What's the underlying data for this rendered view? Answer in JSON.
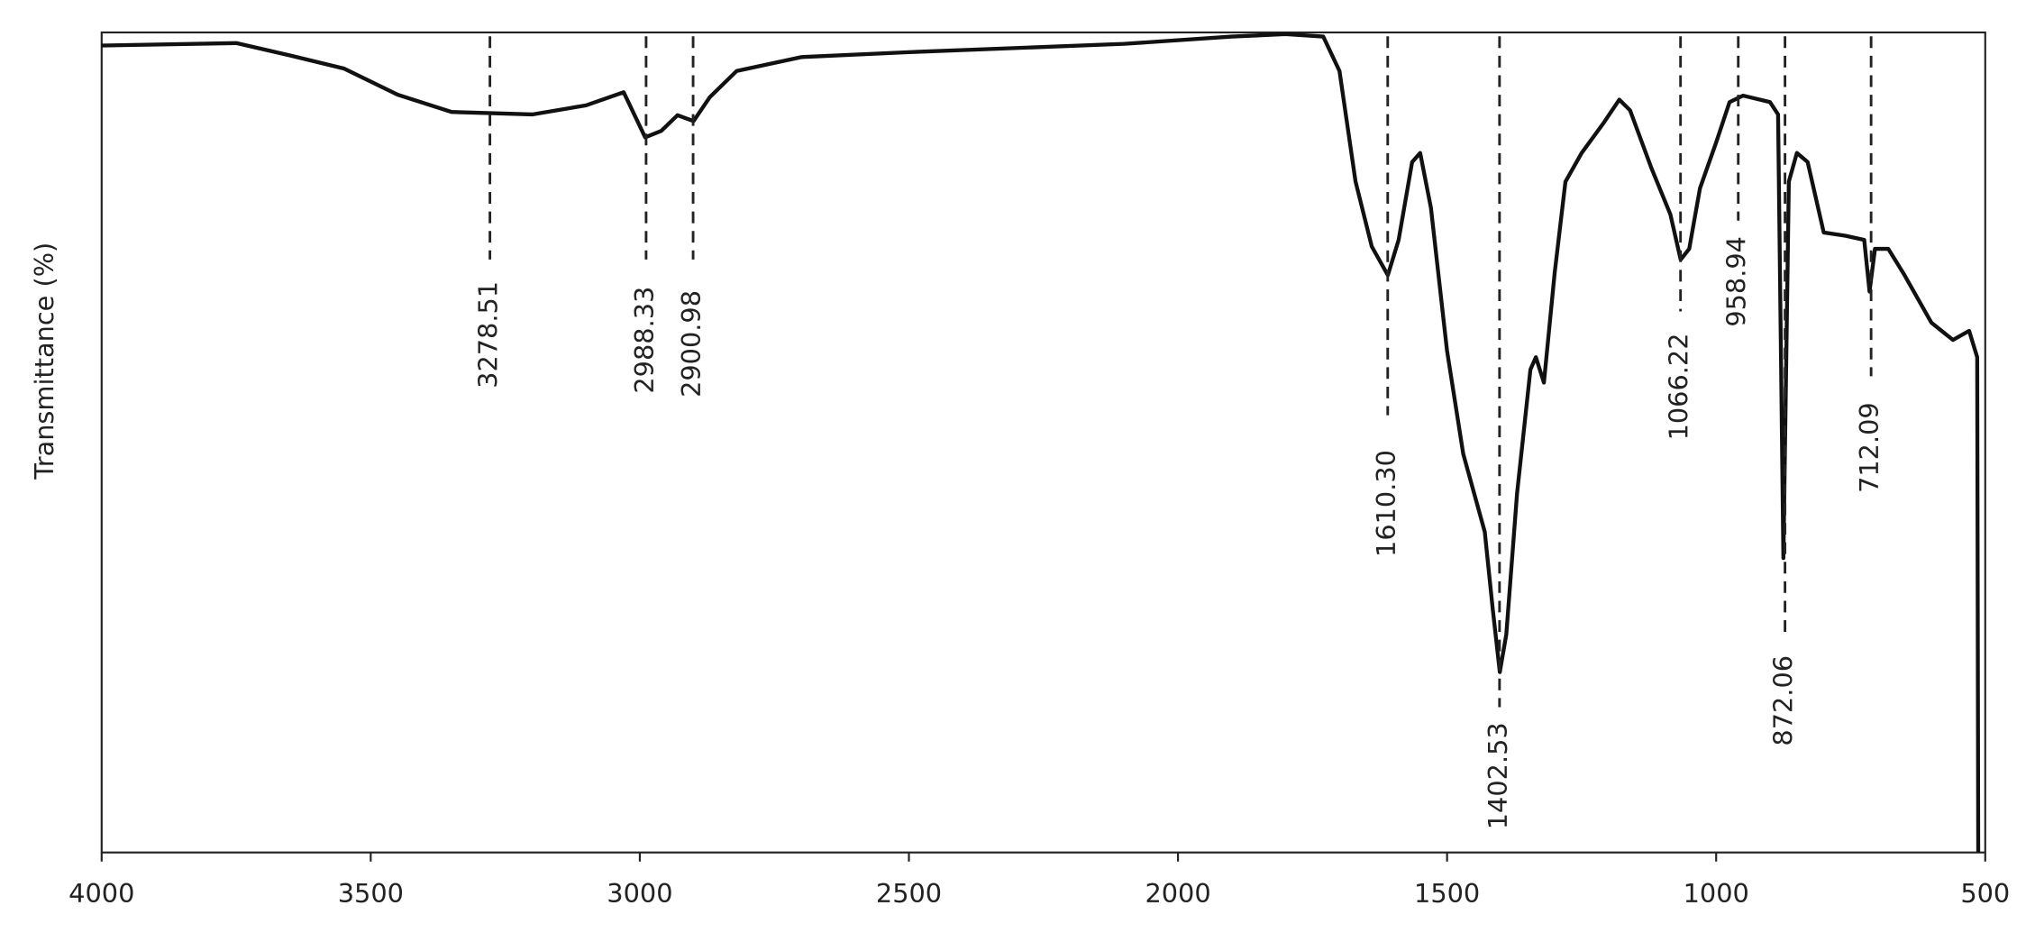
{
  "chart_data": {
    "type": "line",
    "y_label": "Transmittance (%)",
    "xlim": [
      4000,
      500
    ],
    "xticks": [
      4000,
      3500,
      3000,
      2500,
      2000,
      1500,
      1000,
      500
    ],
    "ylim": [
      0,
      100
    ],
    "color": "#111111",
    "x": [
      4000,
      3750,
      3650,
      3550,
      3450,
      3350,
      3200,
      3100,
      3030,
      2990,
      2960,
      2930,
      2900,
      2870,
      2820,
      2700,
      2500,
      2300,
      2100,
      1900,
      1800,
      1730,
      1700,
      1670,
      1640,
      1610,
      1590,
      1565,
      1550,
      1530,
      1500,
      1470,
      1430,
      1415,
      1402,
      1390,
      1370,
      1345,
      1335,
      1320,
      1300,
      1280,
      1250,
      1210,
      1180,
      1160,
      1120,
      1085,
      1066,
      1050,
      1030,
      1000,
      975,
      950,
      900,
      885,
      875,
      865,
      850,
      830,
      800,
      760,
      725,
      715,
      705,
      680,
      650,
      600,
      560,
      530,
      515,
      513
    ],
    "series": [
      {
        "name": "spectrum",
        "color": "#111111",
        "values": [
          98.4,
          98.7,
          97.2,
          95.6,
          92.4,
          90.3,
          90.0,
          91.1,
          92.7,
          87.2,
          88.0,
          89.9,
          89.2,
          92.1,
          95.3,
          97.0,
          97.6,
          98.1,
          98.6,
          99.5,
          99.8,
          99.5,
          95.3,
          81.8,
          73.9,
          70.4,
          74.7,
          84.2,
          85.3,
          78.6,
          61.2,
          48.6,
          39.1,
          29.6,
          22.0,
          26.6,
          43.8,
          58.9,
          60.4,
          57.3,
          70.7,
          81.8,
          85.3,
          88.9,
          91.8,
          90.5,
          83.4,
          77.8,
          72.3,
          73.6,
          81.0,
          86.6,
          91.5,
          92.3,
          91.5,
          90.0,
          35.9,
          81.8,
          85.3,
          84.2,
          75.6,
          75.2,
          74.7,
          68.4,
          73.6,
          73.6,
          70.4,
          64.6,
          62.5,
          63.6,
          60.4,
          0
        ]
      }
    ],
    "annotations": [
      {
        "value": 3278.51,
        "label": "3278.51"
      },
      {
        "value": 2988.33,
        "label": "2988.33"
      },
      {
        "value": 2900.98,
        "label": "2900.98"
      },
      {
        "value": 1610.3,
        "label": "1610.30"
      },
      {
        "value": 1402.53,
        "label": "1402.53"
      },
      {
        "value": 1066.22,
        "label": "1066.22"
      },
      {
        "value": 958.94,
        "label": "958.94"
      },
      {
        "value": 872.06,
        "label": "872.06"
      },
      {
        "value": 712.09,
        "label": "712.09"
      }
    ]
  }
}
